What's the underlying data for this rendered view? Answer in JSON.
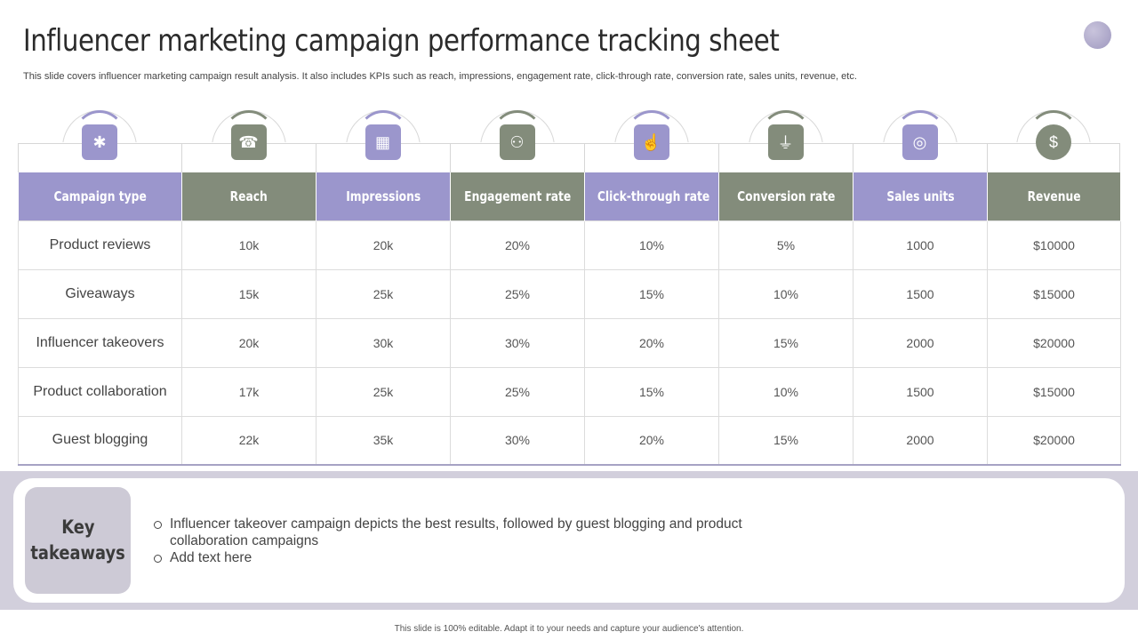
{
  "title": "Influencer marketing campaign performance tracking sheet",
  "subtitle": "This slide covers influencer marketing campaign result analysis. It also includes KPIs such as reach, impressions, engagement rate, click-through rate, conversion rate, sales units, revenue, etc.",
  "colors": {
    "purple": "#9b96cc",
    "green": "#838c7b",
    "band": "#d2cfdc"
  },
  "columns": [
    {
      "label": "Campaign type",
      "color": "purple",
      "icon": "campaign-icon",
      "glyph": "✱"
    },
    {
      "label": "Reach",
      "color": "green",
      "icon": "reach-icon",
      "glyph": "☎"
    },
    {
      "label": "Impressions",
      "color": "purple",
      "icon": "impressions-icon",
      "glyph": "▦"
    },
    {
      "label": "Engagement rate",
      "color": "green",
      "icon": "engagement-icon",
      "glyph": "⚇"
    },
    {
      "label": "Click-through rate",
      "color": "purple",
      "icon": "click-icon",
      "glyph": "☝"
    },
    {
      "label": "Conversion rate",
      "color": "green",
      "icon": "conversion-icon",
      "glyph": "⏚"
    },
    {
      "label": "Sales units",
      "color": "purple",
      "icon": "sales-icon",
      "glyph": "◎"
    },
    {
      "label": "Revenue",
      "color": "green",
      "icon": "revenue-icon",
      "glyph": "$"
    }
  ],
  "rows": [
    [
      "Product reviews",
      "10k",
      "20k",
      "20%",
      "10%",
      "5%",
      "1000",
      "$10000"
    ],
    [
      "Giveaways",
      "15k",
      "25k",
      "25%",
      "15%",
      "10%",
      "1500",
      "$15000"
    ],
    [
      "Influencer  takeovers",
      "20k",
      "30k",
      "30%",
      "20%",
      "15%",
      "2000",
      "$20000"
    ],
    [
      "Product collaboration",
      "17k",
      "25k",
      "25%",
      "15%",
      "10%",
      "1500",
      "$15000"
    ],
    [
      "Guest blogging",
      "22k",
      "35k",
      "30%",
      "20%",
      "15%",
      "2000",
      "$20000"
    ]
  ],
  "key_takeaways": {
    "label_line1": "Key",
    "label_line2": "takeaways",
    "items": [
      "Influencer  takeover campaign depicts the best results, followed by guest blogging and product collaboration campaigns",
      "Add text here"
    ]
  },
  "footer": "This slide is 100% editable.  Adapt it to your needs and capture your audience's attention."
}
